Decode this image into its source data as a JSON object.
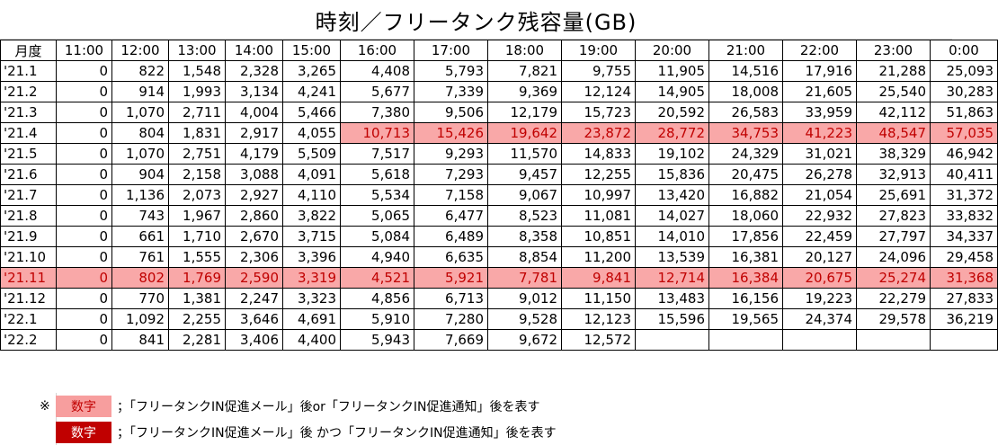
{
  "title": "時刻／フリータンク残容量(GB)",
  "table": {
    "corner": "月度",
    "headers": [
      "11:00",
      "12:00",
      "13:00",
      "14:00",
      "15:00",
      "16:00",
      "17:00",
      "18:00",
      "19:00",
      "20:00",
      "21:00",
      "22:00",
      "23:00",
      "0:00"
    ],
    "rows": [
      {
        "label": "'21.1",
        "values": [
          "0",
          "822",
          "1,548",
          "2,328",
          "3,265",
          "4,408",
          "5,793",
          "7,821",
          "9,755",
          "11,905",
          "14,516",
          "17,916",
          "21,288",
          "25,093"
        ],
        "hl_from": null
      },
      {
        "label": "'21.2",
        "values": [
          "0",
          "914",
          "1,993",
          "3,134",
          "4,241",
          "5,677",
          "7,339",
          "9,369",
          "12,124",
          "14,905",
          "18,008",
          "21,605",
          "25,540",
          "30,283"
        ],
        "hl_from": null
      },
      {
        "label": "'21.3",
        "values": [
          "0",
          "1,070",
          "2,711",
          "4,004",
          "5,466",
          "7,380",
          "9,506",
          "12,179",
          "15,723",
          "20,592",
          "26,583",
          "33,959",
          "42,112",
          "51,863"
        ],
        "hl_from": null
      },
      {
        "label": "'21.4",
        "values": [
          "0",
          "804",
          "1,831",
          "2,917",
          "4,055",
          "10,713",
          "15,426",
          "19,642",
          "23,872",
          "28,772",
          "34,753",
          "41,223",
          "48,547",
          "57,035"
        ],
        "hl_from": 5
      },
      {
        "label": "'21.5",
        "values": [
          "0",
          "1,070",
          "2,751",
          "4,179",
          "5,509",
          "7,517",
          "9,293",
          "11,570",
          "14,833",
          "19,102",
          "24,329",
          "31,021",
          "38,329",
          "46,942"
        ],
        "hl_from": null
      },
      {
        "label": "'21.6",
        "values": [
          "0",
          "904",
          "2,158",
          "3,088",
          "4,091",
          "5,618",
          "7,293",
          "9,457",
          "12,255",
          "15,836",
          "20,475",
          "26,278",
          "32,913",
          "40,411"
        ],
        "hl_from": null
      },
      {
        "label": "'21.7",
        "values": [
          "0",
          "1,136",
          "2,073",
          "2,927",
          "4,110",
          "5,534",
          "7,158",
          "9,067",
          "10,997",
          "13,420",
          "16,882",
          "21,054",
          "25,691",
          "31,372"
        ],
        "hl_from": null
      },
      {
        "label": "'21.8",
        "values": [
          "0",
          "743",
          "1,967",
          "2,860",
          "3,822",
          "5,065",
          "6,477",
          "8,523",
          "11,081",
          "14,027",
          "18,060",
          "22,932",
          "27,823",
          "33,832"
        ],
        "hl_from": null
      },
      {
        "label": "'21.9",
        "values": [
          "0",
          "661",
          "1,710",
          "2,670",
          "3,715",
          "5,084",
          "6,489",
          "8,358",
          "10,851",
          "14,010",
          "17,856",
          "22,459",
          "27,797",
          "34,337"
        ],
        "hl_from": null
      },
      {
        "label": "'21.10",
        "values": [
          "0",
          "761",
          "1,555",
          "2,306",
          "3,396",
          "4,940",
          "6,635",
          "8,854",
          "11,200",
          "13,539",
          "16,381",
          "20,127",
          "24,096",
          "29,458"
        ],
        "hl_from": null
      },
      {
        "label": "'21.11",
        "values": [
          "0",
          "802",
          "1,769",
          "2,590",
          "3,319",
          "4,521",
          "5,921",
          "7,781",
          "9,841",
          "12,714",
          "16,384",
          "20,675",
          "25,274",
          "31,368"
        ],
        "hl_from": 0
      },
      {
        "label": "'21.12",
        "values": [
          "0",
          "770",
          "1,381",
          "2,247",
          "3,323",
          "4,856",
          "6,713",
          "9,012",
          "11,150",
          "13,483",
          "16,156",
          "19,223",
          "22,279",
          "27,833"
        ],
        "hl_from": null
      },
      {
        "label": "'22.1",
        "values": [
          "0",
          "1,092",
          "2,255",
          "3,646",
          "4,691",
          "5,910",
          "7,280",
          "9,528",
          "12,123",
          "15,596",
          "19,565",
          "24,374",
          "29,578",
          "36,219"
        ],
        "hl_from": null
      },
      {
        "label": "'22.2",
        "values": [
          "0",
          "841",
          "2,281",
          "3,406",
          "4,400",
          "5,943",
          "7,669",
          "9,672",
          "12,572",
          "",
          "",
          "",
          "",
          ""
        ],
        "hl_from": null
      }
    ]
  },
  "legend": {
    "mark": "※",
    "items": [
      {
        "swatch_label": "数字",
        "text": "；「フリータンクIN促進メール」後or「フリータンクIN促進通知」後を表す",
        "style": "light"
      },
      {
        "swatch_label": "数字",
        "text": "；「フリータンクIN促進メール」後 かつ「フリータンクIN促進通知」後を表す",
        "style": "dark"
      }
    ]
  },
  "colors": {
    "highlight_fill": "#f9a8a8",
    "highlight_text": "#c00000",
    "dark_swatch": "#c00000"
  }
}
